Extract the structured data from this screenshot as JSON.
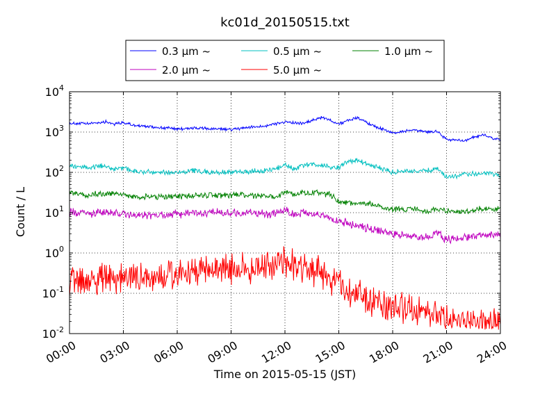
{
  "chart_data": {
    "type": "line",
    "title": "kc01d_20150515.txt",
    "xlabel": "Time on 2015-05-15 (JST)",
    "ylabel": "Count / L",
    "yscale": "log",
    "xlim_hours": [
      0,
      24
    ],
    "ylim": [
      0.01,
      10000
    ],
    "grid": true,
    "legend_position": "top-center",
    "x_tick_labels": [
      "00:00",
      "03:00",
      "06:00",
      "09:00",
      "12:00",
      "15:00",
      "18:00",
      "21:00",
      "24:00"
    ],
    "y_tick_labels": [
      {
        "base": "10",
        "exp": "-2"
      },
      {
        "base": "10",
        "exp": "-1"
      },
      {
        "base": "10",
        "exp": "0"
      },
      {
        "base": "10",
        "exp": "1"
      },
      {
        "base": "10",
        "exp": "2"
      },
      {
        "base": "10",
        "exp": "3"
      },
      {
        "base": "10",
        "exp": "4"
      }
    ],
    "series": [
      {
        "name": "0.3 μm ~",
        "color": "#0000ff",
        "x_hours": [
          0,
          1,
          2,
          2.5,
          3,
          3.5,
          4,
          5,
          6,
          7,
          8,
          9,
          10,
          11,
          12,
          13,
          14,
          14.5,
          15,
          16,
          17,
          18,
          19,
          20,
          20.5,
          21,
          22,
          23,
          24
        ],
        "values": [
          1650,
          1600,
          1800,
          1600,
          1700,
          1500,
          1400,
          1300,
          1200,
          1250,
          1200,
          1150,
          1300,
          1450,
          1800,
          1600,
          2300,
          2000,
          1600,
          2300,
          1400,
          950,
          1100,
          1000,
          1050,
          650,
          620,
          850,
          620
        ],
        "noise": 0.03
      },
      {
        "name": "0.5 μm ~",
        "color": "#00bfbf",
        "x_hours": [
          0,
          1,
          2,
          2.5,
          3,
          3.5,
          4,
          5,
          6,
          7,
          8,
          9,
          10,
          11,
          11.7,
          12,
          12.5,
          13,
          14,
          14.5,
          15,
          15.5,
          16,
          17,
          18,
          19,
          20,
          20.5,
          21,
          22,
          23,
          24
        ],
        "values": [
          145,
          130,
          150,
          115,
          130,
          110,
          105,
          100,
          100,
          110,
          100,
          100,
          105,
          110,
          130,
          160,
          120,
          150,
          155,
          135,
          130,
          190,
          200,
          140,
          100,
          105,
          110,
          120,
          75,
          85,
          95,
          85
        ],
        "noise": 0.05
      },
      {
        "name": "1.0 μm ~",
        "color": "#008000",
        "x_hours": [
          0,
          1,
          2,
          3,
          3.5,
          4,
          5,
          6,
          7,
          8,
          9,
          10,
          11,
          11.5,
          12,
          12.5,
          13,
          14,
          14.5,
          15,
          16,
          17,
          18,
          19,
          20,
          20.5,
          21,
          22,
          23,
          24
        ],
        "values": [
          32,
          27,
          30,
          28,
          25,
          24,
          25,
          25,
          27,
          27,
          27,
          27,
          26,
          24,
          35,
          28,
          32,
          30,
          28,
          19,
          17,
          16,
          12,
          12,
          11,
          13,
          11,
          10,
          13,
          12
        ],
        "noise": 0.06
      },
      {
        "name": "2.0 μm ~",
        "color": "#bf00bf",
        "x_hours": [
          0,
          1,
          2,
          3,
          4,
          5,
          6,
          7,
          8,
          9,
          10,
          11,
          11.5,
          12,
          12.5,
          13,
          14,
          15,
          16,
          17,
          18,
          19,
          20,
          20.5,
          21,
          22,
          23,
          24
        ],
        "values": [
          10,
          9.5,
          10,
          9,
          8.5,
          8.5,
          9,
          10,
          10,
          10,
          10,
          9,
          10,
          12,
          9,
          10,
          9,
          6,
          5,
          3.8,
          3,
          2.6,
          2.4,
          3.2,
          2.1,
          2.4,
          2.6,
          2.8
        ],
        "noise": 0.08
      },
      {
        "name": "5.0 μm ~",
        "color": "#ff0000",
        "x_hours": [
          0,
          1,
          2,
          3,
          4,
          5,
          6,
          7,
          8,
          9,
          10,
          11,
          12,
          12.5,
          13,
          14,
          14.5,
          15,
          16,
          17,
          18,
          19,
          20,
          21,
          22,
          23,
          24
        ],
        "values": [
          0.18,
          0.2,
          0.22,
          0.23,
          0.25,
          0.27,
          0.28,
          0.3,
          0.33,
          0.38,
          0.4,
          0.45,
          0.55,
          0.5,
          0.4,
          0.35,
          0.2,
          0.18,
          0.1,
          0.06,
          0.05,
          0.04,
          0.03,
          0.025,
          0.02,
          0.018,
          0.02
        ],
        "noise": 0.3
      }
    ]
  }
}
